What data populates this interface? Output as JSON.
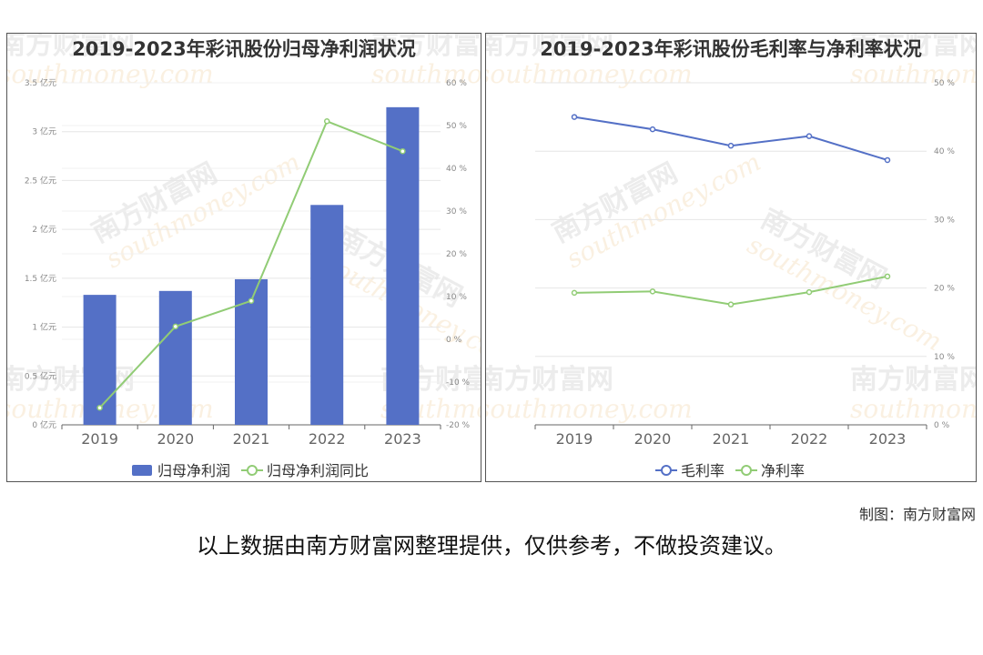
{
  "charts": {
    "left": {
      "title": "2019-2023年彩讯股份归母净利润状况",
      "legend": [
        "归母净利润",
        "归母净利润同比"
      ]
    },
    "right": {
      "title": "2019-2023年彩讯股份毛利率与净利率状况",
      "legend": [
        "毛利率",
        "净利率"
      ]
    }
  },
  "watermark": {
    "cn": "南方财富网",
    "en": "southmoney.com"
  },
  "credit": "制图：南方财富网",
  "disclaimer": "以上数据由南方财富网整理提供，仅供参考，不做投资建议。",
  "colors": {
    "bar": "#5470c6",
    "green": "#91cc75",
    "blue": "#5470c6"
  },
  "chart_data": [
    {
      "type": "bar",
      "title": "2019-2023年彩讯股份归母净利润状况",
      "categories": [
        "2019",
        "2020",
        "2021",
        "2022",
        "2023"
      ],
      "series": [
        {
          "name": "归母净利润",
          "type": "bar",
          "axis": "left",
          "values": [
            1.33,
            1.37,
            1.49,
            2.25,
            3.25
          ]
        },
        {
          "name": "归母净利润同比",
          "type": "line",
          "axis": "right",
          "values": [
            -16,
            3,
            9,
            51,
            44
          ]
        }
      ],
      "y_left": {
        "range": [
          0,
          3.5
        ],
        "ticks": [
          "0 亿元",
          "0.5 亿元",
          "1 亿元",
          "1.5 亿元",
          "2 亿元",
          "2.5 亿元",
          "3 亿元",
          "3.5 亿元"
        ]
      },
      "y_right": {
        "range": [
          -20,
          60
        ],
        "ticks": [
          "-20 %",
          "-10 %",
          "0 %",
          "10 %",
          "20 %",
          "30 %",
          "40 %",
          "50 %",
          "60 %"
        ]
      },
      "grid": true,
      "legend_position": "bottom"
    },
    {
      "type": "line",
      "title": "2019-2023年彩讯股份毛利率与净利率状况",
      "categories": [
        "2019",
        "2020",
        "2021",
        "2022",
        "2023"
      ],
      "series": [
        {
          "name": "毛利率",
          "values": [
            45,
            43.2,
            40.8,
            42.2,
            38.7
          ]
        },
        {
          "name": "净利率",
          "values": [
            19.3,
            19.5,
            17.6,
            19.4,
            21.7
          ]
        }
      ],
      "y_right": {
        "range": [
          0,
          50
        ],
        "ticks": [
          "0 %",
          "10 %",
          "20 %",
          "30 %",
          "40 %",
          "50 %"
        ]
      },
      "grid": true,
      "legend_position": "bottom"
    }
  ]
}
